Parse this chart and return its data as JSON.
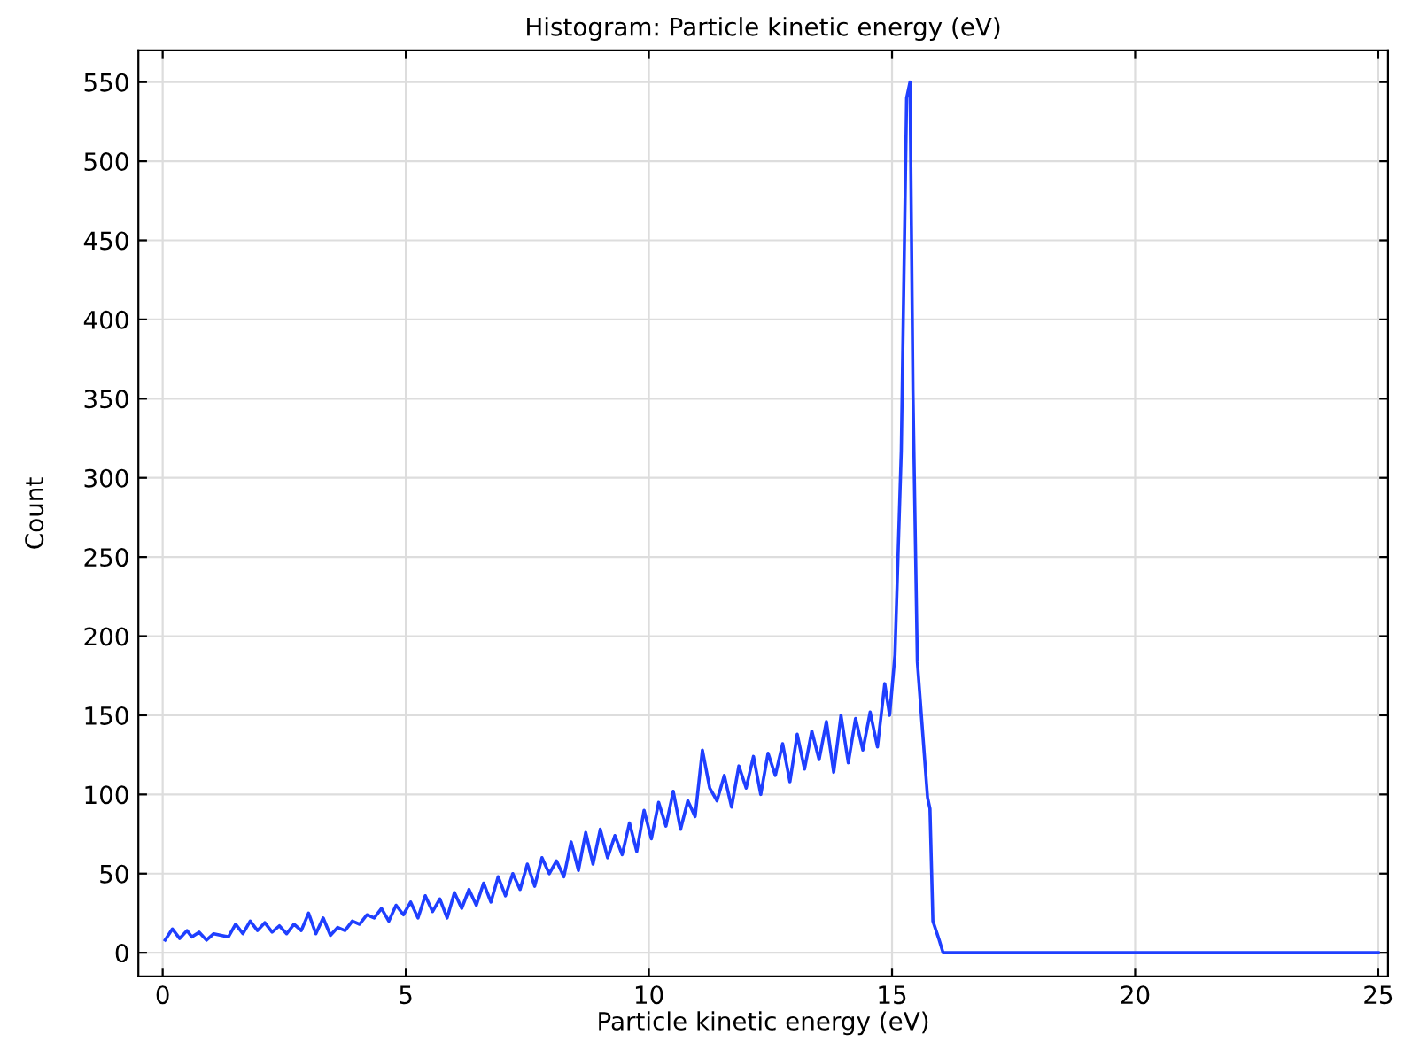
{
  "chart_data": {
    "type": "line",
    "title": "Histogram: Particle kinetic energy (eV)",
    "xlabel": "Particle kinetic energy (eV)",
    "ylabel": "Count",
    "series": [
      {
        "color": "#1f3fff",
        "x": [
          0.05,
          0.2,
          0.35,
          0.5,
          0.6,
          0.75,
          0.9,
          1.05,
          1.2,
          1.35,
          1.5,
          1.65,
          1.8,
          1.95,
          2.1,
          2.25,
          2.4,
          2.55,
          2.7,
          2.85,
          3.0,
          3.15,
          3.3,
          3.45,
          3.6,
          3.75,
          3.9,
          4.05,
          4.2,
          4.35,
          4.5,
          4.65,
          4.8,
          4.95,
          5.1,
          5.25,
          5.4,
          5.55,
          5.7,
          5.85,
          6.0,
          6.15,
          6.3,
          6.45,
          6.6,
          6.75,
          6.9,
          7.05,
          7.2,
          7.35,
          7.5,
          7.65,
          7.8,
          7.95,
          8.1,
          8.25,
          8.4,
          8.55,
          8.7,
          8.85,
          9.0,
          9.15,
          9.3,
          9.45,
          9.6,
          9.75,
          9.9,
          10.05,
          10.2,
          10.35,
          10.5,
          10.65,
          10.8,
          10.95,
          11.1,
          11.25,
          11.4,
          11.55,
          11.7,
          11.85,
          12.0,
          12.15,
          12.3,
          12.45,
          12.6,
          12.75,
          12.9,
          13.05,
          13.2,
          13.35,
          13.5,
          13.65,
          13.8,
          13.95,
          14.1,
          14.25,
          14.4,
          14.55,
          14.7,
          14.85,
          14.95,
          15.06,
          15.19,
          15.3,
          15.37,
          15.43,
          15.52,
          15.64,
          15.73,
          15.78,
          15.84,
          15.96,
          16.05,
          25
        ],
        "values": [
          8,
          15,
          9,
          14,
          10,
          13,
          8,
          12,
          11,
          10,
          18,
          12,
          20,
          14,
          19,
          13,
          17,
          12,
          18,
          14,
          25,
          12,
          22,
          11,
          16,
          14,
          20,
          18,
          24,
          22,
          28,
          20,
          30,
          24,
          32,
          22,
          36,
          26,
          34,
          22,
          38,
          28,
          40,
          30,
          44,
          32,
          48,
          36,
          50,
          40,
          56,
          42,
          60,
          50,
          58,
          48,
          70,
          52,
          76,
          56,
          78,
          60,
          74,
          62,
          82,
          64,
          90,
          72,
          95,
          80,
          102,
          78,
          96,
          86,
          128,
          104,
          96,
          112,
          92,
          118,
          104,
          124,
          100,
          126,
          112,
          132,
          108,
          138,
          116,
          140,
          122,
          146,
          114,
          150,
          120,
          148,
          128,
          152,
          130,
          170,
          150,
          188,
          317,
          540,
          550,
          355,
          184,
          135,
          98,
          91,
          20,
          9,
          0,
          0
        ]
      }
    ],
    "xlim": [
      -0.5,
      25.2
    ],
    "ylim": [
      -15,
      570
    ],
    "xticks": [
      0,
      5,
      10,
      15,
      20,
      25
    ],
    "yticks": [
      0,
      50,
      100,
      150,
      200,
      250,
      300,
      350,
      400,
      450,
      500,
      550
    ],
    "grid": true
  }
}
